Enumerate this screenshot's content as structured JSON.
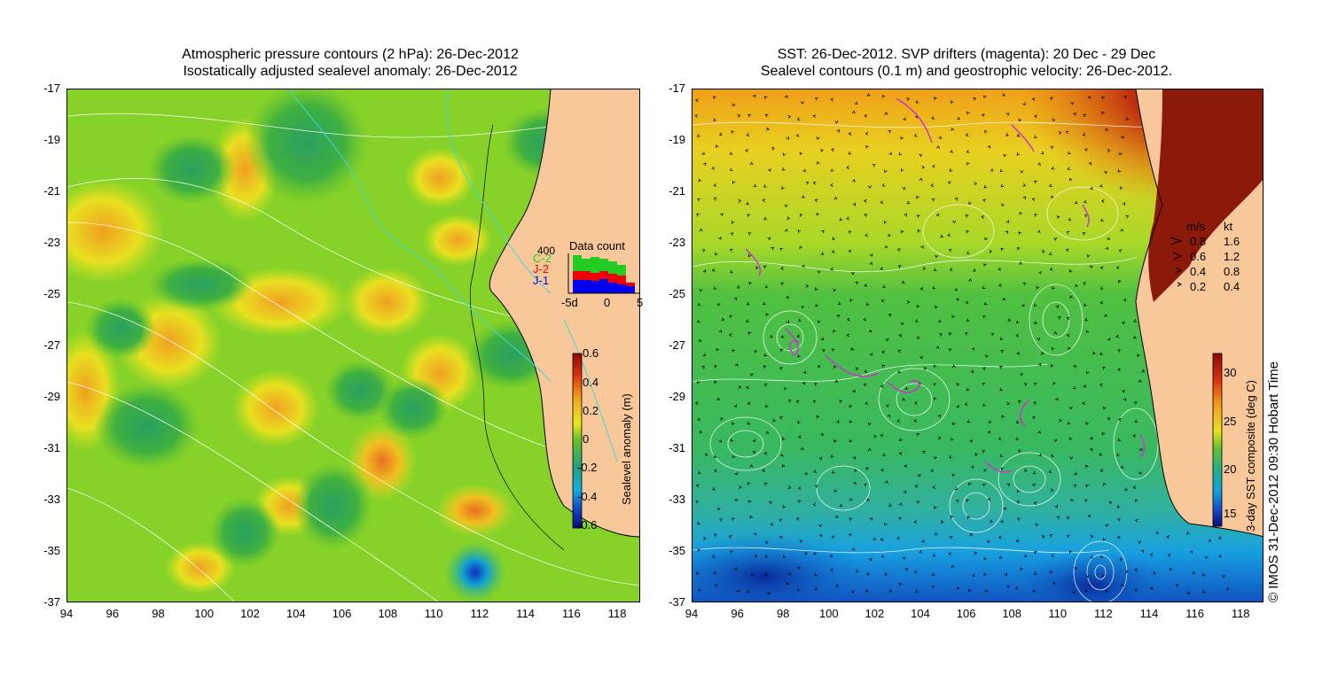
{
  "left_panel": {
    "title_line1": "Atmospheric pressure contours (2 hPa): 26-Dec-2012",
    "title_line2": "Isostatically adjusted sealevel anomaly: 26-Dec-2012",
    "colorbar": {
      "label": "Sealevel anomaly (m)",
      "ticks": [
        "0.6",
        "0.4",
        "0.2",
        "0",
        "-0.2",
        "-0.4",
        "-0.6"
      ]
    },
    "data_count": {
      "title": "Data count",
      "max_label": "400",
      "series": [
        "C-2",
        "J-2",
        "J-1"
      ],
      "series_colors": [
        "#22cc22",
        "#ee0000",
        "#0000ee"
      ],
      "x_ticks": [
        "-5d",
        "0",
        "5"
      ]
    }
  },
  "right_panel": {
    "title_line1": "SST: 26-Dec-2012. SVP drifters (magenta): 20 Dec - 29 Dec",
    "title_line2": "Sealevel contours (0.1 m) and geostrophic velocity: 26-Dec-2012.",
    "velocity_legend": {
      "header_ms": "m/s",
      "header_kt": "kt",
      "rows": [
        {
          "ms": "0.8",
          "kt": "1.6"
        },
        {
          "ms": "0.6",
          "kt": "1.2"
        },
        {
          "ms": "0.4",
          "kt": "0.8"
        },
        {
          "ms": "0.2",
          "kt": "0.4"
        }
      ]
    },
    "colorbar": {
      "label": "3-day SST composite (deg C)",
      "ticks": [
        "30",
        "25",
        "20",
        "15"
      ]
    },
    "copyright": "© IMOS 31-Dec-2012 09:30 Hobart Time"
  },
  "axes": {
    "y_ticks": [
      "-17",
      "-19",
      "-21",
      "-23",
      "-25",
      "-27",
      "-29",
      "-31",
      "-33",
      "-35",
      "-37"
    ],
    "x_ticks": [
      "94",
      "96",
      "98",
      "100",
      "102",
      "104",
      "106",
      "108",
      "110",
      "112",
      "114",
      "116",
      "118"
    ]
  },
  "colors": {
    "land": "#f9c89a",
    "ocean_base_left": "#7fd02a",
    "ocean_base_right": "#3fc35a",
    "drifter": "#cc33cc"
  }
}
